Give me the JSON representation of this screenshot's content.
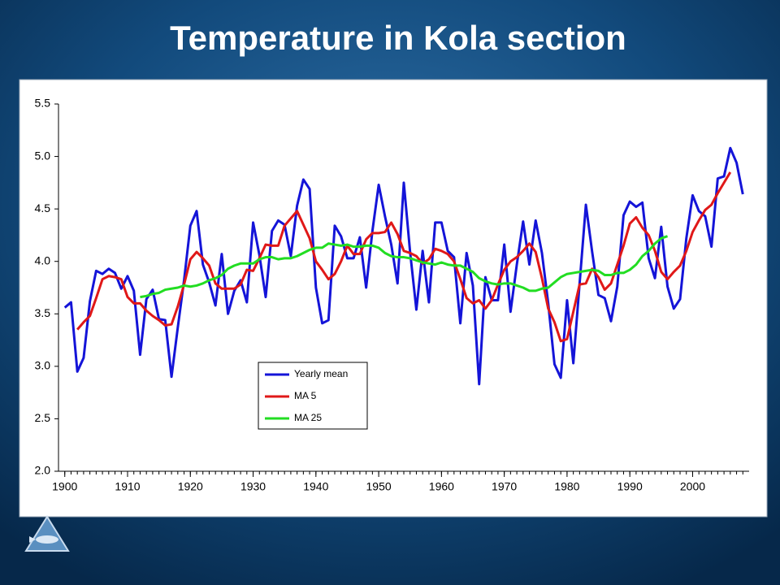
{
  "chart_data": {
    "type": "line",
    "title": "Temperature in Kola section",
    "x": [
      1900,
      1901,
      1902,
      1903,
      1904,
      1905,
      1906,
      1907,
      1908,
      1909,
      1910,
      1911,
      1912,
      1913,
      1914,
      1915,
      1916,
      1917,
      1918,
      1919,
      1920,
      1921,
      1922,
      1923,
      1924,
      1925,
      1926,
      1927,
      1928,
      1929,
      1930,
      1931,
      1932,
      1933,
      1934,
      1935,
      1936,
      1937,
      1938,
      1939,
      1940,
      1941,
      1942,
      1943,
      1944,
      1945,
      1946,
      1947,
      1948,
      1949,
      1950,
      1951,
      1952,
      1953,
      1954,
      1955,
      1956,
      1957,
      1958,
      1959,
      1960,
      1961,
      1962,
      1963,
      1964,
      1965,
      1966,
      1967,
      1968,
      1969,
      1970,
      1971,
      1972,
      1973,
      1974,
      1975,
      1976,
      1977,
      1978,
      1979,
      1980,
      1981,
      1982,
      1983,
      1984,
      1985,
      1986,
      1987,
      1988,
      1989,
      1990,
      1991,
      1992,
      1993,
      1994,
      1995,
      1996,
      1997,
      1998,
      1999,
      2000,
      2001,
      2002,
      2003,
      2004,
      2005,
      2006,
      2007,
      2008
    ],
    "series": [
      {
        "name": "Yearly mean",
        "color": "#1414d8",
        "values": [
          3.56,
          3.61,
          2.95,
          3.08,
          3.62,
          3.91,
          3.88,
          3.93,
          3.89,
          3.74,
          3.86,
          3.72,
          3.11,
          3.64,
          3.73,
          3.45,
          3.44,
          2.9,
          3.37,
          3.82,
          4.34,
          4.48,
          3.97,
          3.8,
          3.58,
          4.07,
          3.5,
          3.72,
          3.82,
          3.61,
          4.37,
          4.06,
          3.66,
          4.29,
          4.39,
          4.35,
          4.05,
          4.53,
          4.78,
          4.69,
          3.75,
          3.41,
          3.44,
          4.34,
          4.24,
          4.03,
          4.03,
          4.23,
          3.75,
          4.29,
          4.73,
          4.43,
          4.16,
          3.79,
          4.75,
          4.09,
          3.54,
          4.1,
          3.61,
          4.37,
          4.37,
          4.1,
          4.04,
          3.41,
          4.08,
          3.77,
          2.83,
          3.85,
          3.63,
          3.63,
          4.16,
          3.52,
          3.97,
          4.38,
          3.97,
          4.39,
          4.08,
          3.6,
          3.02,
          2.89,
          3.63,
          3.03,
          3.79,
          4.54,
          4.09,
          3.68,
          3.65,
          3.43,
          3.76,
          4.44,
          4.57,
          4.52,
          4.56,
          4.03,
          3.84,
          4.33,
          3.76,
          3.55,
          3.64,
          4.22,
          4.63,
          4.48,
          4.43,
          4.14,
          4.79,
          4.81,
          5.08,
          4.94,
          4.64
        ]
      },
      {
        "name": "MA 5",
        "color": "#e01818",
        "values": [
          null,
          null,
          3.35,
          3.42,
          3.48,
          3.65,
          3.83,
          3.86,
          3.85,
          3.83,
          3.66,
          3.6,
          3.6,
          3.53,
          3.48,
          3.44,
          3.39,
          3.4,
          3.57,
          3.78,
          4.02,
          4.09,
          4.03,
          3.96,
          3.79,
          3.74,
          3.74,
          3.74,
          3.78,
          3.92,
          3.91,
          4.03,
          4.16,
          4.15,
          4.15,
          4.34,
          4.41,
          4.48,
          4.35,
          4.22,
          4.0,
          3.92,
          3.83,
          3.88,
          4.0,
          4.15,
          4.07,
          4.07,
          4.21,
          4.27,
          4.27,
          4.28,
          4.37,
          4.26,
          4.1,
          4.08,
          4.05,
          3.98,
          4.02,
          4.12,
          4.1,
          4.07,
          4.0,
          3.83,
          3.65,
          3.6,
          3.63,
          3.55,
          3.63,
          3.78,
          3.92,
          4.0,
          4.04,
          4.1,
          4.17,
          4.09,
          3.84,
          3.55,
          3.42,
          3.24,
          3.26,
          3.52,
          3.78,
          3.79,
          3.93,
          3.85,
          3.73,
          3.79,
          3.97,
          4.15,
          4.36,
          4.42,
          4.32,
          4.25,
          4.1,
          3.9,
          3.83,
          3.9,
          3.96,
          4.1,
          4.28,
          4.39,
          4.49,
          4.54,
          4.65,
          4.75,
          4.85,
          null,
          null
        ]
      },
      {
        "name": "MA 25",
        "color": "#22dd22",
        "values": [
          null,
          null,
          null,
          null,
          null,
          null,
          null,
          null,
          null,
          null,
          null,
          null,
          3.66,
          3.67,
          3.69,
          3.7,
          3.73,
          3.74,
          3.75,
          3.77,
          3.76,
          3.77,
          3.79,
          3.82,
          3.84,
          3.87,
          3.93,
          3.96,
          3.98,
          3.98,
          3.98,
          4.02,
          4.04,
          4.04,
          4.02,
          4.03,
          4.03,
          4.05,
          4.08,
          4.11,
          4.13,
          4.13,
          4.17,
          4.16,
          4.15,
          4.16,
          4.14,
          4.14,
          4.15,
          4.15,
          4.13,
          4.08,
          4.05,
          4.04,
          4.04,
          4.03,
          4.01,
          3.99,
          3.98,
          3.97,
          3.99,
          3.97,
          3.96,
          3.96,
          3.93,
          3.9,
          3.84,
          3.81,
          3.79,
          3.78,
          3.79,
          3.79,
          3.77,
          3.75,
          3.72,
          3.72,
          3.74,
          3.75,
          3.8,
          3.85,
          3.88,
          3.89,
          3.9,
          3.91,
          3.92,
          3.91,
          3.87,
          3.87,
          3.89,
          3.89,
          3.92,
          3.97,
          4.05,
          4.1,
          4.17,
          4.22,
          4.24,
          null,
          null,
          null,
          null,
          null,
          null,
          null,
          null,
          null,
          null,
          null,
          null
        ]
      }
    ],
    "xlim": [
      1899,
      2009
    ],
    "xticks": [
      1900,
      1910,
      1920,
      1930,
      1940,
      1950,
      1960,
      1970,
      1980,
      1990,
      2000
    ],
    "ylim": [
      2,
      5.5
    ],
    "yticks": [
      {
        "value": 2,
        "label": "2.0"
      },
      2.5,
      {
        "value": 3,
        "label": "3.0"
      },
      3.5,
      {
        "value": 4,
        "label": "4.0"
      },
      4.5,
      {
        "value": 5,
        "label": "5.0"
      },
      5.5
    ],
    "grid": false
  }
}
